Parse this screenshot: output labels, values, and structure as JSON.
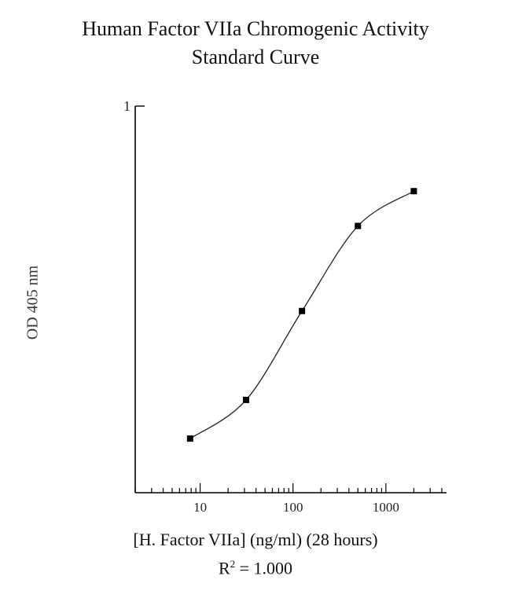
{
  "chart_data": {
    "type": "line",
    "title_line1": "Human Factor VIIa Chromogenic Activity",
    "title_line2": "Standard Curve",
    "xlabel": "[H. Factor VIIa] (ng/ml) (28 hours)",
    "ylabel": "OD 405 nm",
    "r2_prefix": "R",
    "r2_exp": "2",
    "r2_suffix": " = 1.000",
    "x_scale": "log",
    "xlim": [
      2,
      4500
    ],
    "ylim": [
      0,
      1
    ],
    "x_ticks": [
      10,
      100,
      1000
    ],
    "x_tick_labels": [
      "10",
      "100",
      "1000"
    ],
    "y_ticks": [
      1
    ],
    "y_tick_labels": [
      "1"
    ],
    "grid": false,
    "series": [
      {
        "x": [
          7.8,
          31.25,
          125,
          500,
          2000
        ],
        "y": [
          0.14,
          0.24,
          0.47,
          0.69,
          0.78
        ]
      }
    ]
  }
}
